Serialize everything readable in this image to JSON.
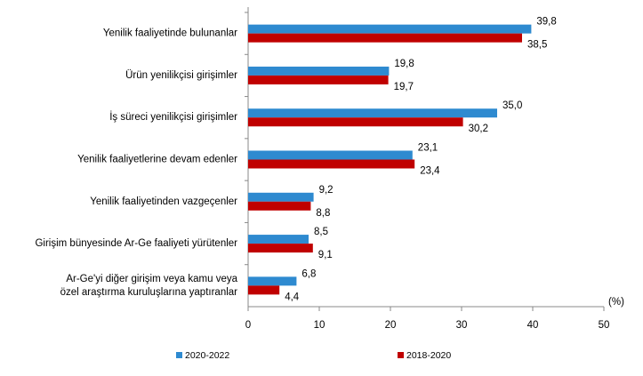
{
  "chart_data": {
    "type": "bar",
    "orientation": "horizontal",
    "categories": [
      "Yenilik faaliyetinde bulunanlar",
      "Ürün yenilikçisi girişimler",
      "İş süreci yenilikçisi girişimler",
      "Yenilik faaliyetlerine devam edenler",
      "Yenilik faaliyetinden vazgeçenler",
      "Girişim bünyesinde Ar-Ge faaliyeti yürütenler",
      [
        "Ar-Ge'yi diğer girişim veya kamu veya",
        "özel araştırma kuruluşlarına yaptıranlar"
      ]
    ],
    "series": [
      {
        "name": "2020-2022",
        "color": "#2e8ad0",
        "values": [
          39.8,
          19.8,
          35.0,
          23.1,
          9.2,
          8.5,
          6.8
        ],
        "value_labels": [
          "39,8",
          "19,8",
          "35,0",
          "23,1",
          "9,2",
          "8,5",
          "6,8"
        ]
      },
      {
        "name": "2018-2020",
        "color": "#c00000",
        "values": [
          38.5,
          19.7,
          30.2,
          23.4,
          8.8,
          9.1,
          4.4
        ],
        "value_labels": [
          "38,5",
          "19,7",
          "30,2",
          "23,4",
          "8,8",
          "9,1",
          "4,4"
        ]
      }
    ],
    "xlabel": "(%)",
    "xlim": [
      0,
      50
    ],
    "xticks": [
      0,
      10,
      20,
      30,
      40,
      50
    ],
    "grid": false
  }
}
